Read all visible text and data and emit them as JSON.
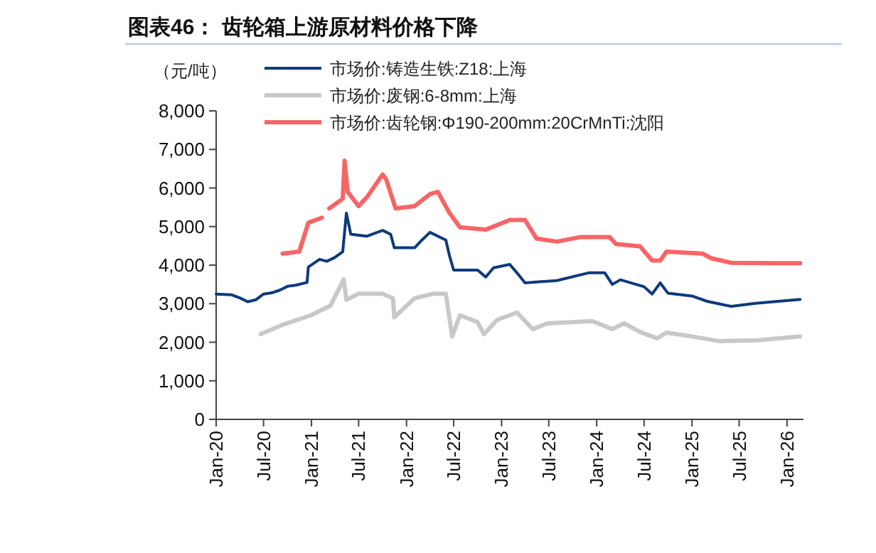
{
  "chart_data": {
    "type": "line",
    "title": "图表46：  齿轮箱上游原材料价格下降",
    "ylabel": "（元/吨）",
    "legend": "top",
    "marker": "none",
    "line_style": "solid",
    "grid": false,
    "xlim": [
      "2020-01-01",
      "2026-03-05"
    ],
    "xticks": [
      {
        "value": "2020-01",
        "label": "Jan-20"
      },
      {
        "value": "2020-07",
        "label": "Jul-20"
      },
      {
        "value": "2021-01",
        "label": "Jan-21"
      },
      {
        "value": "2021-07",
        "label": "Jul-21"
      },
      {
        "value": "2022-01",
        "label": "Jan-22"
      },
      {
        "value": "2022-07",
        "label": "Jul-22"
      },
      {
        "value": "2023-01",
        "label": "Jan-23"
      },
      {
        "value": "2023-07",
        "label": "Jul-23"
      },
      {
        "value": "2024-01",
        "label": "Jan-24"
      },
      {
        "value": "2024-07",
        "label": "Jul-24"
      },
      {
        "value": "2025-01",
        "label": "Jan-25"
      },
      {
        "value": "2025-07",
        "label": "Jul-25"
      },
      {
        "value": "2026-01",
        "label": "Jan-26"
      }
    ],
    "ylim": [
      0,
      8000
    ],
    "yticks": [
      0,
      {
        "value": 1000,
        "label": "1,000"
      },
      {
        "value": 2000,
        "label": "2,000"
      },
      {
        "value": 3000,
        "label": "3,000"
      },
      {
        "value": 4000,
        "label": "4,000"
      },
      {
        "value": 5000,
        "label": "5,000"
      },
      {
        "value": 6000,
        "label": "6,000"
      },
      {
        "value": 7000,
        "label": "7,000"
      },
      {
        "value": 8000,
        "label": "8,000"
      }
    ],
    "series": [
      {
        "name": "市场价:铸造生铁:Z18:上海",
        "color": "#0d3a7e",
        "x": [
          "2020-01",
          "2020-03",
          "2020-04",
          "2020-05",
          "2020-06",
          "2020-07",
          "2020-08",
          "2020-09",
          "2020-10",
          "2020-11",
          "2020-12-15",
          "2020-12-20",
          "2021-02",
          "2021-03",
          "2021-04",
          "2021-05",
          "2021-05-15",
          "2021-06",
          "2021-08",
          "2021-10",
          "2021-11",
          "2021-11-15",
          "2022-02",
          "2022-03",
          "2022-04",
          "2022-06",
          "2022-06-15",
          "2022-07",
          "2022-10",
          "2022-11",
          "2022-12",
          "2023-02",
          "2023-03",
          "2023-04",
          "2023-08",
          "2023-12",
          "2024-02",
          "2024-03",
          "2024-04",
          "2024-07",
          "2024-08",
          "2024-09",
          "2024-10",
          "2025-01",
          "2025-03",
          "2025-06",
          "2025-09",
          "2026-02-20"
        ],
        "values": [
          3250,
          3230,
          3150,
          3050,
          3100,
          3250,
          3280,
          3350,
          3450,
          3480,
          3550,
          3950,
          4150,
          4100,
          4200,
          4350,
          5350,
          4800,
          4750,
          4900,
          4800,
          4450,
          4450,
          4650,
          4850,
          4650,
          4240,
          3870,
          3870,
          3690,
          3930,
          4020,
          3800,
          3540,
          3600,
          3800,
          3800,
          3500,
          3620,
          3440,
          3250,
          3540,
          3270,
          3200,
          3060,
          2930,
          3010,
          3110
        ]
      },
      {
        "name": "市场价:废钢:6-8mm:上海",
        "color": "#c8c8c8",
        "x": [
          "2020-06-20",
          "2020-09-15",
          "2020-12-30",
          "2021-03-15",
          "2021-05-05",
          "2021-05-15",
          "2021-07",
          "2021-10",
          "2021-11-10",
          "2021-11-15",
          "2022-02",
          "2022-04-15",
          "2022-06",
          "2022-06-25",
          "2022-07-25",
          "2022-10",
          "2022-10-25",
          "2022-12-15",
          "2023-03",
          "2023-05",
          "2023-06-25",
          "2023-12-15",
          "2024-03",
          "2024-04-15",
          "2024-06-15",
          "2024-08-20",
          "2024-09-25",
          "2025-01",
          "2025-04-15",
          "2025-09-10",
          "2026-02-20"
        ],
        "values": [
          2210,
          2460,
          2700,
          2950,
          3630,
          3100,
          3260,
          3260,
          3140,
          2650,
          3140,
          3260,
          3260,
          2150,
          2700,
          2520,
          2210,
          2580,
          2770,
          2340,
          2490,
          2550,
          2340,
          2490,
          2270,
          2100,
          2250,
          2150,
          2030,
          2050,
          2150
        ]
      },
      {
        "name": "市场价:齿轮钢:Φ190-200mm:20CrMnTi:沈阳",
        "color": "#f86466",
        "x": [
          "2020-09-12",
          "2020-11-15",
          "2020-12-20",
          "2021-02-10",
          "2021-02-20",
          "2021-03-10",
          "2021-05",
          "2021-05-08",
          "2021-05-20",
          "2021-07",
          "2021-08-05",
          "2021-10",
          "2021-10-15",
          "2021-11-20",
          "2022-02",
          "2022-04",
          "2022-05",
          "2022-06-15",
          "2022-07-25",
          "2022-11",
          "2023-02",
          "2023-04",
          "2023-05-15",
          "2023-08",
          "2023-11",
          "2024-02-20",
          "2024-03-15",
          "2024-06-15",
          "2024-08",
          "2024-09",
          "2024-09-25",
          "2025-02-10",
          "2025-03-15",
          "2025-06",
          "2025-11",
          "2026-02-20"
        ],
        "values": [
          4300,
          4350,
          5100,
          5230,
          null,
          5470,
          5720,
          6710,
          5900,
          5530,
          5790,
          6350,
          6220,
          5470,
          5530,
          5840,
          5900,
          5350,
          4980,
          4920,
          5170,
          5170,
          4690,
          4610,
          4730,
          4730,
          4550,
          4490,
          4120,
          4120,
          4350,
          4300,
          4180,
          4060,
          4050,
          4050
        ]
      }
    ]
  }
}
